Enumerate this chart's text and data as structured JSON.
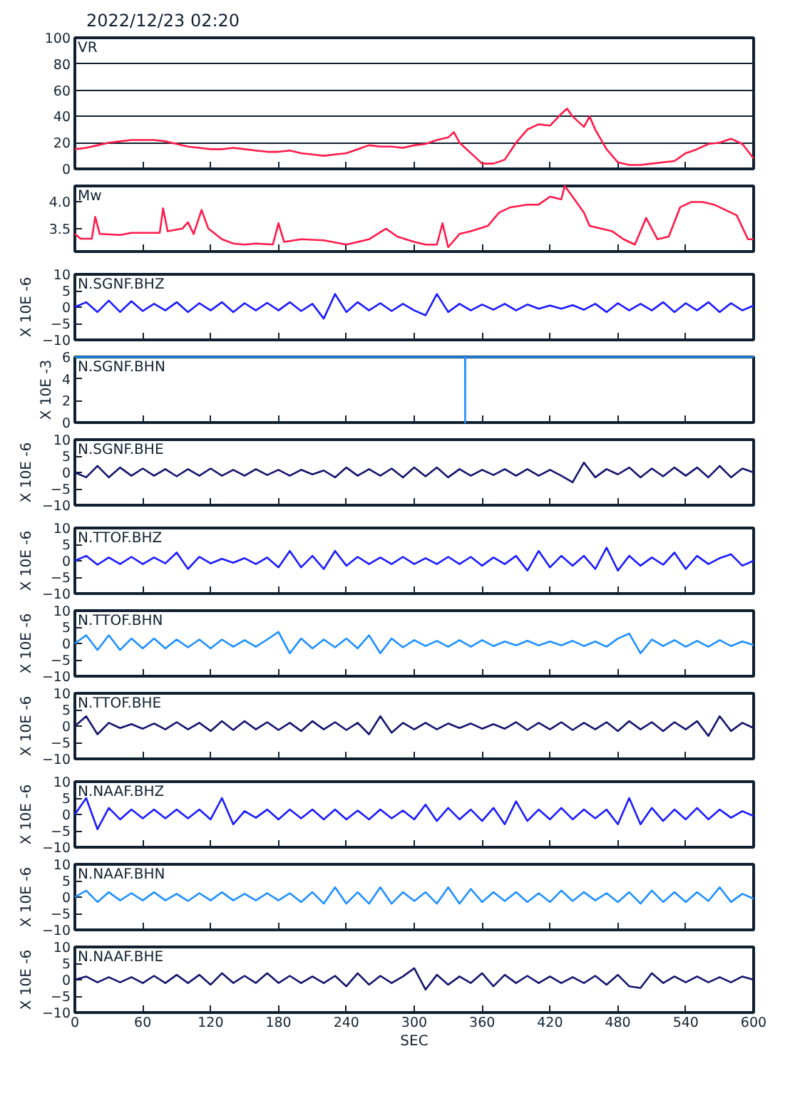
{
  "chart_data": [
    {
      "type": "line",
      "title": "VR",
      "annotations": [
        "2022/12/23 02:20"
      ],
      "x": [
        0,
        10,
        20,
        30,
        40,
        50,
        60,
        70,
        80,
        90,
        100,
        110,
        120,
        130,
        140,
        150,
        160,
        170,
        180,
        190,
        200,
        210,
        220,
        230,
        240,
        250,
        260,
        270,
        280,
        290,
        300,
        310,
        320,
        330,
        335,
        340,
        350,
        360,
        370,
        380,
        390,
        400,
        410,
        420,
        430,
        435,
        440,
        450,
        455,
        460,
        470,
        480,
        490,
        500,
        510,
        520,
        530,
        540,
        550,
        560,
        570,
        580,
        590,
        600
      ],
      "series": [
        {
          "color": "#ff1a4a",
          "values": [
            15,
            16,
            18,
            20,
            21,
            22,
            22,
            22,
            21,
            19,
            17,
            16,
            15,
            15,
            16,
            15,
            14,
            13,
            13,
            14,
            12,
            11,
            10,
            11,
            12,
            15,
            18,
            17,
            17,
            16,
            18,
            19,
            22,
            24,
            28,
            20,
            12,
            4,
            4,
            7,
            20,
            30,
            34,
            33,
            42,
            46,
            40,
            32,
            40,
            30,
            15,
            5,
            3,
            3,
            4,
            5,
            6,
            12,
            15,
            19,
            20,
            23,
            19,
            8
          ]
        }
      ],
      "xlim": [
        0,
        600
      ],
      "xticks": [
        0,
        60,
        120,
        180,
        240,
        300,
        360,
        420,
        480,
        540,
        600
      ],
      "ylim": [
        0,
        100
      ],
      "yticks": [
        0,
        20,
        40,
        60,
        80,
        100
      ],
      "grid": "y",
      "tick_labels": "y"
    },
    {
      "type": "line",
      "title": "Mw",
      "x": [
        0,
        5,
        15,
        18,
        22,
        40,
        50,
        60,
        75,
        78,
        82,
        95,
        100,
        105,
        112,
        118,
        130,
        140,
        150,
        160,
        175,
        180,
        185,
        200,
        220,
        240,
        260,
        275,
        285,
        300,
        310,
        320,
        325,
        330,
        340,
        350,
        365,
        375,
        385,
        400,
        410,
        420,
        430,
        433,
        440,
        450,
        455,
        465,
        475,
        485,
        495,
        505,
        515,
        525,
        535,
        545,
        555,
        565,
        575,
        585,
        595,
        600
      ],
      "series": [
        {
          "color": "#ff1a4a",
          "values": [
            3.4,
            3.31,
            3.31,
            3.72,
            3.4,
            3.38,
            3.42,
            3.42,
            3.42,
            3.88,
            3.45,
            3.5,
            3.62,
            3.4,
            3.85,
            3.5,
            3.3,
            3.22,
            3.2,
            3.22,
            3.2,
            3.6,
            3.25,
            3.3,
            3.28,
            3.2,
            3.3,
            3.5,
            3.35,
            3.25,
            3.2,
            3.2,
            3.6,
            3.15,
            3.4,
            3.45,
            3.55,
            3.8,
            3.9,
            3.95,
            3.95,
            4.1,
            4.05,
            4.3,
            4.1,
            3.8,
            3.55,
            3.5,
            3.45,
            3.3,
            3.2,
            3.7,
            3.3,
            3.35,
            3.9,
            4.0,
            4.0,
            3.95,
            3.85,
            3.75,
            3.3,
            3.3
          ]
        }
      ],
      "xlim": [
        0,
        600
      ],
      "xticks": [
        0,
        60,
        120,
        180,
        240,
        300,
        360,
        420,
        480,
        540,
        600
      ],
      "ylim": [
        3.07,
        4.3
      ],
      "yticks": [
        3.5,
        {
          "value": 4,
          "label": "4.0"
        }
      ],
      "tick_labels": "y"
    },
    {
      "type": "line",
      "title": "N.SGNF.BHZ",
      "ylabel": "X 10E -6",
      "x": [
        0,
        10,
        20,
        30,
        40,
        50,
        60,
        70,
        80,
        90,
        100,
        110,
        120,
        130,
        140,
        150,
        160,
        170,
        180,
        190,
        200,
        210,
        220,
        230,
        240,
        250,
        260,
        270,
        280,
        290,
        300,
        310,
        320,
        330,
        340,
        350,
        360,
        370,
        380,
        390,
        400,
        410,
        420,
        430,
        440,
        450,
        460,
        470,
        480,
        490,
        500,
        510,
        520,
        530,
        540,
        550,
        560,
        570,
        580,
        590,
        600
      ],
      "series": [
        {
          "color": "#1a1aff",
          "values": [
            0,
            1.5,
            -1.5,
            2,
            -1.5,
            1.8,
            -1.2,
            1,
            -1,
            1.5,
            -1.5,
            1.2,
            -1,
            1.5,
            -1.5,
            1.2,
            -1,
            1.3,
            -1,
            1.5,
            -1.2,
            1,
            -3.5,
            4,
            -1.5,
            1.5,
            -1,
            1.2,
            -1.2,
            1,
            -1,
            -2.5,
            4,
            -1.5,
            1,
            -1,
            0.8,
            -0.8,
            1,
            -1,
            0.8,
            -0.5,
            0.5,
            -0.5,
            0.6,
            -0.8,
            1,
            -1.5,
            1.2,
            -1,
            1,
            -1,
            1.5,
            -1.5,
            1.2,
            -1,
            1.5,
            -1.5,
            1.2,
            -1,
            0.5
          ]
        }
      ],
      "xlim": [
        0,
        600
      ],
      "xticks": [
        0,
        60,
        120,
        180,
        240,
        300,
        360,
        420,
        480,
        540,
        600
      ],
      "ylim": [
        -10,
        10
      ],
      "yticks": [
        -10,
        -5,
        0,
        5,
        10
      ],
      "tick_labels": "y"
    },
    {
      "type": "line",
      "title": "N.SGNF.BHN",
      "ylabel": "X 10E -3",
      "x": [
        0,
        344.9,
        345,
        345.1,
        600
      ],
      "series": [
        {
          "color": "#1e90ff",
          "values": [
            6,
            6,
            0,
            6,
            6
          ]
        }
      ],
      "xlim": [
        0,
        600
      ],
      "xticks": [
        0,
        60,
        120,
        180,
        240,
        300,
        360,
        420,
        480,
        540,
        600
      ],
      "ylim": [
        0,
        6
      ],
      "yticks": [
        0,
        2,
        4,
        6
      ],
      "tick_labels": "y"
    },
    {
      "type": "line",
      "title": "N.SGNF.BHE",
      "ylabel": "X 10E -6",
      "x": [
        0,
        10,
        20,
        30,
        40,
        50,
        60,
        70,
        80,
        90,
        100,
        110,
        120,
        130,
        140,
        150,
        160,
        170,
        180,
        190,
        200,
        210,
        220,
        230,
        240,
        250,
        260,
        270,
        280,
        290,
        300,
        310,
        320,
        330,
        340,
        350,
        360,
        370,
        380,
        390,
        400,
        410,
        420,
        430,
        440,
        450,
        460,
        470,
        480,
        490,
        500,
        510,
        520,
        530,
        540,
        550,
        560,
        570,
        580,
        590,
        600
      ],
      "series": [
        {
          "color": "#14146e",
          "values": [
            0,
            -1.5,
            2,
            -1.5,
            1.5,
            -1,
            1.2,
            -1,
            1,
            -1.2,
            1,
            -1,
            1.2,
            -1,
            0.8,
            -1,
            1,
            -0.8,
            0.8,
            -1,
            0.8,
            -0.6,
            0.6,
            -1.5,
            1.5,
            -1,
            1,
            -1,
            1.2,
            -1.5,
            1.5,
            -1.2,
            1.5,
            -1.5,
            1,
            -1,
            0.8,
            -0.8,
            1,
            -1,
            1,
            -1,
            0.8,
            -1,
            -3,
            3,
            -1.5,
            1,
            -0.6,
            1.5,
            -1.5,
            1.2,
            -1.2,
            1.5,
            -1,
            1.5,
            -1.5,
            2,
            -1.5,
            1.2,
            0
          ]
        }
      ],
      "xlim": [
        0,
        600
      ],
      "xticks": [
        0,
        60,
        120,
        180,
        240,
        300,
        360,
        420,
        480,
        540,
        600
      ],
      "ylim": [
        -10,
        10
      ],
      "yticks": [
        -10,
        -5,
        0,
        5,
        10
      ],
      "tick_labels": "y"
    },
    {
      "type": "line",
      "title": "N.TTOF.BHZ",
      "ylabel": "X 10E -6",
      "x": [
        0,
        10,
        20,
        30,
        40,
        50,
        60,
        70,
        80,
        90,
        100,
        110,
        120,
        130,
        140,
        150,
        160,
        170,
        180,
        190,
        200,
        210,
        220,
        230,
        240,
        250,
        260,
        270,
        280,
        290,
        300,
        310,
        320,
        330,
        340,
        350,
        360,
        370,
        380,
        390,
        400,
        410,
        420,
        430,
        440,
        450,
        460,
        470,
        480,
        490,
        500,
        510,
        520,
        530,
        540,
        550,
        560,
        570,
        580,
        590,
        600
      ],
      "series": [
        {
          "color": "#1a1aff",
          "values": [
            0,
            1.5,
            -1.2,
            1,
            -1,
            1.2,
            -1,
            1,
            -0.8,
            2.5,
            -2.5,
            1.2,
            -0.8,
            0.6,
            -0.6,
            0.8,
            -1,
            1,
            -2,
            3,
            -2,
            1.5,
            -2.5,
            3,
            -1.5,
            1.2,
            -1,
            1,
            -1,
            1.2,
            -1,
            0.8,
            -1,
            1.2,
            -1,
            1.2,
            -1.5,
            1,
            -1,
            1.5,
            -3,
            3,
            -2,
            1.5,
            -1.5,
            1.5,
            -2.5,
            4,
            -3,
            1.5,
            -1.5,
            1,
            -1.2,
            2.5,
            -2.5,
            1.5,
            -1,
            0.8,
            2,
            -1.5,
            0
          ]
        }
      ],
      "xlim": [
        0,
        600
      ],
      "xticks": [
        0,
        60,
        120,
        180,
        240,
        300,
        360,
        420,
        480,
        540,
        600
      ],
      "ylim": [
        -10,
        10
      ],
      "yticks": [
        -10,
        -5,
        0,
        5,
        10
      ],
      "tick_labels": "y"
    },
    {
      "type": "line",
      "title": "N.TTOF.BHN",
      "ylabel": "X 10E -6",
      "x": [
        0,
        10,
        20,
        30,
        40,
        50,
        60,
        70,
        80,
        90,
        100,
        110,
        120,
        130,
        140,
        150,
        160,
        170,
        180,
        190,
        200,
        210,
        220,
        230,
        240,
        250,
        260,
        270,
        280,
        290,
        300,
        310,
        320,
        330,
        340,
        350,
        360,
        370,
        380,
        390,
        400,
        410,
        420,
        430,
        440,
        450,
        460,
        470,
        480,
        490,
        500,
        510,
        520,
        530,
        540,
        550,
        560,
        570,
        580,
        590,
        600
      ],
      "series": [
        {
          "color": "#1e90ff",
          "values": [
            0,
            2.5,
            -2,
            2.5,
            -2,
            1.5,
            -1.5,
            1.5,
            -1.5,
            1.2,
            -1.2,
            1.2,
            -1.5,
            1.2,
            -1,
            1,
            -1,
            1.2,
            3.5,
            -3,
            1.5,
            -1.5,
            1.2,
            -1.2,
            1.5,
            -1.5,
            2.5,
            -3,
            1.5,
            -1.2,
            1,
            -0.8,
            0.8,
            -1,
            1,
            -1,
            1,
            -0.8,
            0.6,
            -0.6,
            0.8,
            -0.6,
            0.6,
            -0.6,
            0.8,
            -0.8,
            0.6,
            -1,
            1.5,
            3,
            -3,
            1.2,
            -0.8,
            1,
            -1,
            0.8,
            -1,
            1,
            -0.8,
            0.6,
            -0.5
          ]
        }
      ],
      "xlim": [
        0,
        600
      ],
      "xticks": [
        0,
        60,
        120,
        180,
        240,
        300,
        360,
        420,
        480,
        540,
        600
      ],
      "ylim": [
        -10,
        10
      ],
      "yticks": [
        -10,
        -5,
        0,
        5,
        10
      ],
      "tick_labels": "y"
    },
    {
      "type": "line",
      "title": "N.TTOF.BHE",
      "ylabel": "X 10E -6",
      "x": [
        0,
        10,
        20,
        30,
        40,
        50,
        60,
        70,
        80,
        90,
        100,
        110,
        120,
        130,
        140,
        150,
        160,
        170,
        180,
        190,
        200,
        210,
        220,
        230,
        240,
        250,
        260,
        270,
        280,
        290,
        300,
        310,
        320,
        330,
        340,
        350,
        360,
        370,
        380,
        390,
        400,
        410,
        420,
        430,
        440,
        450,
        460,
        470,
        480,
        490,
        500,
        510,
        520,
        530,
        540,
        550,
        560,
        570,
        580,
        590,
        600
      ],
      "series": [
        {
          "color": "#14146e",
          "values": [
            0,
            3,
            -2.5,
            1,
            -0.6,
            0.6,
            -0.8,
            0.8,
            -1,
            1.2,
            -1,
            1,
            -1.5,
            1.5,
            -1.2,
            1.5,
            -1,
            1.2,
            -1.2,
            1,
            -1.5,
            1.5,
            -1,
            1.2,
            -1.2,
            1,
            -2.5,
            3,
            -2,
            1,
            -1,
            1,
            -1,
            0.8,
            -0.6,
            0.8,
            -0.8,
            0.6,
            -0.8,
            1.2,
            -1.2,
            1,
            -1,
            1.2,
            -1.2,
            1,
            -1,
            1.2,
            -1.5,
            1.5,
            -1,
            1.2,
            -1.5,
            1.2,
            -1,
            1.5,
            -3,
            3,
            -1.5,
            1,
            -0.6
          ]
        }
      ],
      "xlim": [
        0,
        600
      ],
      "xticks": [
        0,
        60,
        120,
        180,
        240,
        300,
        360,
        420,
        480,
        540,
        600
      ],
      "ylim": [
        -10,
        10
      ],
      "yticks": [
        -10,
        -5,
        0,
        5,
        10
      ],
      "tick_labels": "y"
    },
    {
      "type": "line",
      "title": "N.NAAF.BHZ",
      "ylabel": "X 10E -6",
      "x": [
        0,
        10,
        20,
        30,
        40,
        50,
        60,
        70,
        80,
        90,
        100,
        110,
        120,
        130,
        140,
        150,
        160,
        170,
        180,
        190,
        200,
        210,
        220,
        230,
        240,
        250,
        260,
        270,
        280,
        290,
        300,
        310,
        320,
        330,
        340,
        350,
        360,
        370,
        380,
        390,
        400,
        410,
        420,
        430,
        440,
        450,
        460,
        470,
        480,
        490,
        500,
        510,
        520,
        530,
        540,
        550,
        560,
        570,
        580,
        590,
        600
      ],
      "series": [
        {
          "color": "#1a1aff",
          "values": [
            0,
            5,
            -4.5,
            2,
            -1.5,
            1.5,
            -1.2,
            1.5,
            -1.2,
            1.5,
            -1.2,
            1.5,
            -1.5,
            5,
            -3,
            1,
            -1,
            1.5,
            -1.5,
            1.5,
            -1.2,
            1.5,
            -1.5,
            1.5,
            -1.5,
            1.2,
            -1.5,
            1.5,
            -1.2,
            1.2,
            -1.5,
            3,
            -2,
            2,
            -1.5,
            1.5,
            -2,
            2,
            -3,
            4,
            -2,
            1.5,
            -1.5,
            2,
            -1.5,
            1.5,
            -1.2,
            1.5,
            -3,
            5,
            -3,
            2,
            -2,
            1.5,
            -1.5,
            2,
            -1.5,
            1.5,
            -1,
            1,
            -0.5
          ]
        }
      ],
      "xlim": [
        0,
        600
      ],
      "xticks": [
        0,
        60,
        120,
        180,
        240,
        300,
        360,
        420,
        480,
        540,
        600
      ],
      "ylim": [
        -10,
        10
      ],
      "yticks": [
        -10,
        -5,
        0,
        5,
        10
      ],
      "tick_labels": "y"
    },
    {
      "type": "line",
      "title": "N.NAAF.BHN",
      "ylabel": "X 10E -6",
      "x": [
        0,
        10,
        20,
        30,
        40,
        50,
        60,
        70,
        80,
        90,
        100,
        110,
        120,
        130,
        140,
        150,
        160,
        170,
        180,
        190,
        200,
        210,
        220,
        230,
        240,
        250,
        260,
        270,
        280,
        290,
        300,
        310,
        320,
        330,
        340,
        350,
        360,
        370,
        380,
        390,
        400,
        410,
        420,
        430,
        440,
        450,
        460,
        470,
        480,
        490,
        500,
        510,
        520,
        530,
        540,
        550,
        560,
        570,
        580,
        590,
        600
      ],
      "series": [
        {
          "color": "#1e90ff",
          "values": [
            0,
            2,
            -1.5,
            1.5,
            -1,
            1.2,
            -1,
            1.5,
            -1,
            1,
            -1.2,
            1.2,
            -1,
            1.5,
            -1,
            1,
            -1,
            1.2,
            -1,
            1.2,
            -1.5,
            1.5,
            -2,
            3,
            -2,
            1.5,
            -2,
            3,
            -2,
            1.5,
            -1.2,
            1.5,
            -2,
            3,
            -2,
            2.5,
            -1.5,
            1.5,
            -1.2,
            1.5,
            -1.5,
            1.2,
            -1.5,
            2,
            -1.2,
            1.5,
            -1,
            1.2,
            -1.5,
            1.5,
            -2,
            2,
            -1.5,
            1.5,
            -1.5,
            1.5,
            -1.2,
            3,
            -1.5,
            1,
            -0.5
          ]
        }
      ],
      "xlim": [
        0,
        600
      ],
      "xticks": [
        0,
        60,
        120,
        180,
        240,
        300,
        360,
        420,
        480,
        540,
        600
      ],
      "ylim": [
        -10,
        10
      ],
      "yticks": [
        -10,
        -5,
        0,
        5,
        10
      ],
      "tick_labels": "y"
    },
    {
      "type": "line",
      "title": "N.NAAF.BHE",
      "ylabel": "X 10E -6",
      "xlabel": "SEC",
      "x": [
        0,
        10,
        20,
        30,
        40,
        50,
        60,
        70,
        80,
        90,
        100,
        110,
        120,
        130,
        140,
        150,
        160,
        170,
        180,
        190,
        200,
        210,
        220,
        230,
        240,
        250,
        260,
        270,
        280,
        290,
        300,
        310,
        320,
        330,
        340,
        350,
        360,
        370,
        380,
        390,
        400,
        410,
        420,
        430,
        440,
        450,
        460,
        470,
        480,
        490,
        500,
        510,
        520,
        530,
        540,
        550,
        560,
        570,
        580,
        590,
        600
      ],
      "series": [
        {
          "color": "#14146e",
          "values": [
            0,
            1,
            -0.8,
            0.8,
            -0.8,
            0.8,
            -1,
            1.2,
            -1,
            1.5,
            -1,
            1.5,
            -1.5,
            2,
            -1,
            1.2,
            -1,
            2,
            -1,
            1.2,
            -1,
            1,
            -1,
            1.2,
            -2,
            2,
            -1.5,
            1.2,
            -1,
            1,
            3.5,
            -3,
            1.5,
            -1.5,
            1,
            -1,
            2,
            -2,
            1.5,
            -1,
            1.2,
            -1,
            1,
            -1,
            0.8,
            -1,
            1.2,
            -1.5,
            1.5,
            -2,
            -2.5,
            2,
            -1,
            1,
            -0.8,
            1,
            -0.8,
            0.8,
            -0.8,
            1,
            0
          ]
        }
      ],
      "xlim": [
        0,
        600
      ],
      "xticks": [
        0,
        60,
        120,
        180,
        240,
        300,
        360,
        420,
        480,
        540,
        600
      ],
      "ylim": [
        -10,
        10
      ],
      "yticks": [
        -10,
        -5,
        0,
        5,
        10
      ]
    }
  ]
}
